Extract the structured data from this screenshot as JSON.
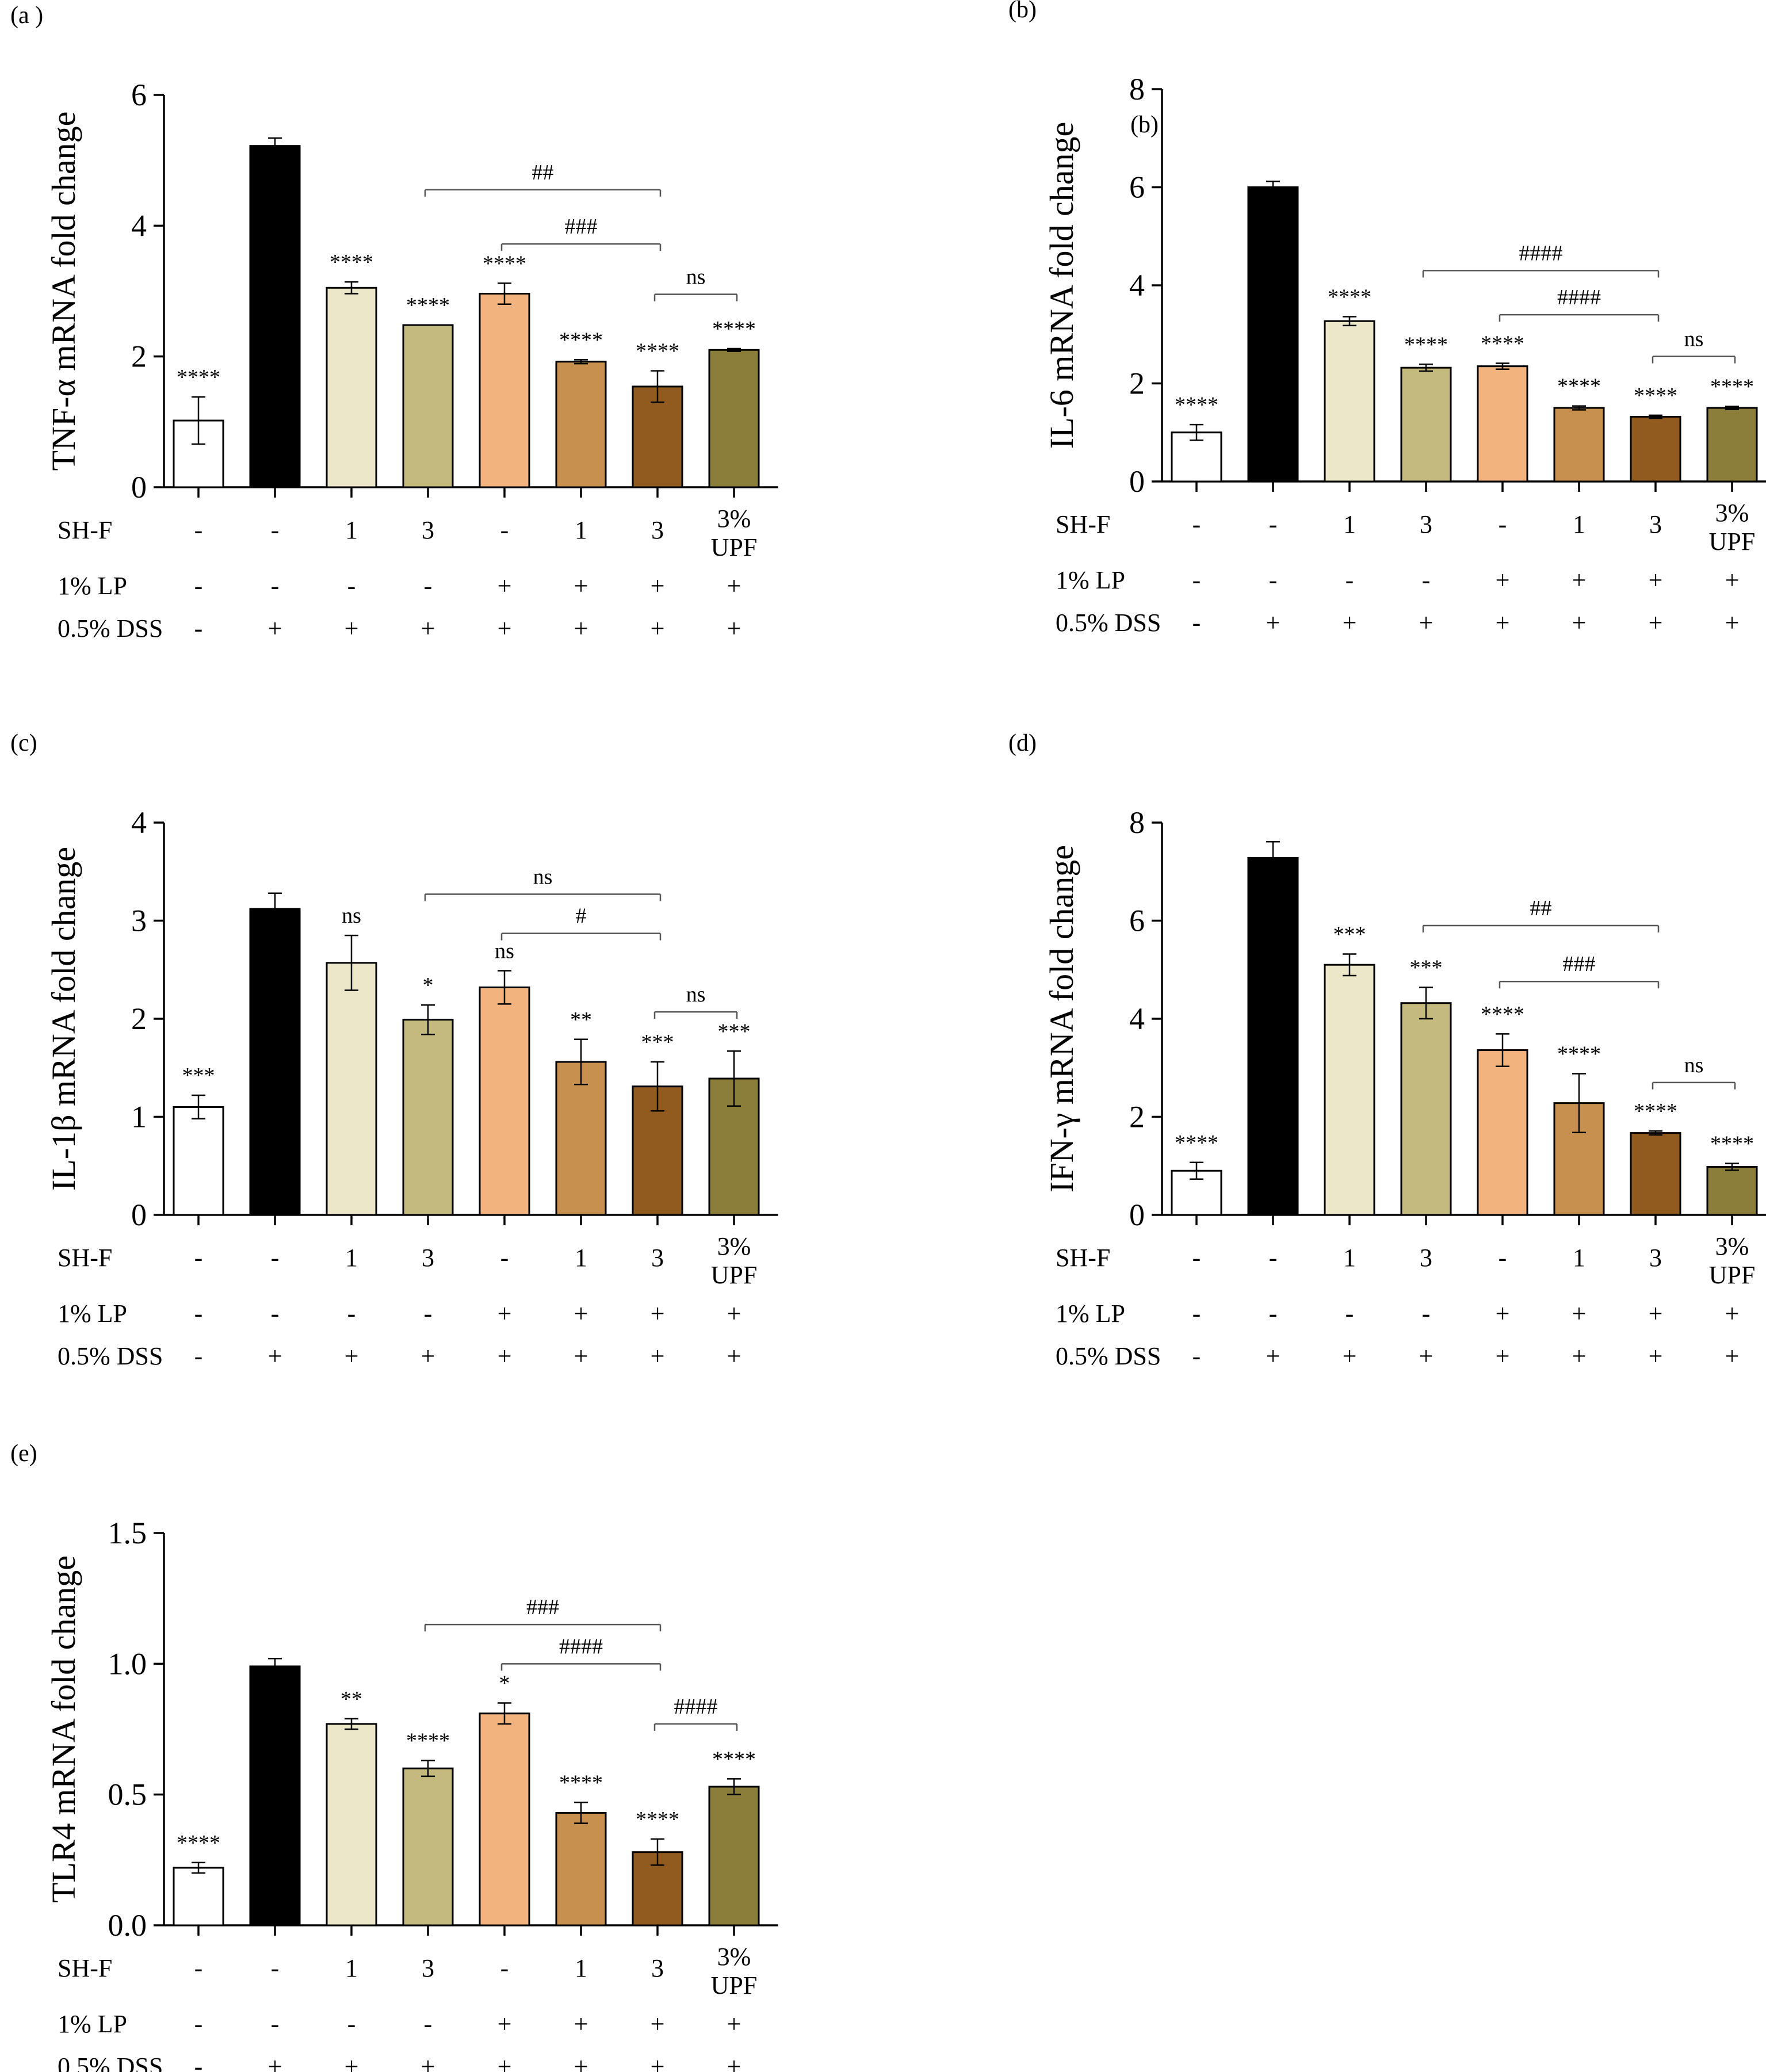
{
  "figure": {
    "conditions": {
      "rows": [
        {
          "label": "SH-F",
          "values": [
            "-",
            "-",
            "1",
            "3",
            "-",
            "1",
            "3",
            "3%|UPF"
          ]
        },
        {
          "label": "1% LP",
          "values": [
            "-",
            "-",
            "-",
            "-",
            "+",
            "+",
            "+",
            "+"
          ]
        },
        {
          "label": "0.5% DSS",
          "values": [
            "-",
            "+",
            "+",
            "+",
            "+",
            "+",
            "+",
            "+"
          ]
        }
      ]
    },
    "colors": [
      "#ffffff",
      "#000000",
      "#ede7c9",
      "#c4ba7e",
      "#f2b37e",
      "#c8904e",
      "#915b1f",
      "#8b7d3a"
    ]
  },
  "chart_data": [
    {
      "type": "bar",
      "panel": "(a )",
      "extra_label": "",
      "ylabel": "TNF-α mRNA fold change",
      "ylim": [
        0,
        6
      ],
      "yticks": [
        "0",
        "2",
        "4",
        "6"
      ],
      "values": [
        1.02,
        5.22,
        3.05,
        2.48,
        2.96,
        1.92,
        1.54,
        2.1
      ],
      "errors": [
        0.36,
        0.12,
        0.09,
        0.0,
        0.16,
        0.03,
        0.24,
        0.02
      ],
      "stars": [
        "****",
        "",
        "****",
        "****",
        "****",
        "****",
        "****",
        "****"
      ],
      "comparisons": [
        {
          "from": 3,
          "to": 6,
          "y": 4.55,
          "label": "##"
        },
        {
          "from": 4,
          "to": 6,
          "y": 3.72,
          "label": "###"
        },
        {
          "from": 6,
          "to": 7,
          "y": 2.95,
          "label": "ns"
        }
      ]
    },
    {
      "type": "bar",
      "panel": "(b)",
      "extra_label": "(b)",
      "ylabel": "IL-6 mRNA fold change",
      "ylim": [
        0,
        8
      ],
      "yticks": [
        "0",
        "2",
        "4",
        "6",
        "8"
      ],
      "values": [
        1.0,
        6.0,
        3.27,
        2.32,
        2.35,
        1.5,
        1.32,
        1.5
      ],
      "errors": [
        0.16,
        0.12,
        0.09,
        0.07,
        0.06,
        0.04,
        0.03,
        0.03
      ],
      "stars": [
        "****",
        "",
        "****",
        "****",
        "****",
        "****",
        "****",
        "****"
      ],
      "comparisons": [
        {
          "from": 3,
          "to": 6,
          "y": 4.3,
          "label": "####"
        },
        {
          "from": 4,
          "to": 6,
          "y": 3.4,
          "label": "####"
        },
        {
          "from": 6,
          "to": 7,
          "y": 2.55,
          "label": "ns"
        }
      ]
    },
    {
      "type": "bar",
      "panel": "(c)",
      "extra_label": "",
      "ylabel": "IL-1β mRNA fold change",
      "ylim": [
        0,
        4
      ],
      "yticks": [
        "0",
        "1",
        "2",
        "3",
        "4"
      ],
      "values": [
        1.1,
        3.12,
        2.57,
        1.99,
        2.32,
        1.56,
        1.31,
        1.39
      ],
      "errors": [
        0.12,
        0.16,
        0.28,
        0.15,
        0.17,
        0.23,
        0.25,
        0.28
      ],
      "stars": [
        "***",
        "",
        "ns",
        "*",
        "ns",
        "**",
        "***",
        "***"
      ],
      "comparisons": [
        {
          "from": 3,
          "to": 6,
          "y": 3.27,
          "label": "ns"
        },
        {
          "from": 4,
          "to": 6,
          "y": 2.87,
          "label": "#"
        },
        {
          "from": 6,
          "to": 7,
          "y": 2.07,
          "label": "ns"
        }
      ]
    },
    {
      "type": "bar",
      "panel": "(d)",
      "extra_label": "",
      "ylabel": "IFN-γ mRNA fold change",
      "ylim": [
        0,
        8
      ],
      "yticks": [
        "0",
        "2",
        "4",
        "6",
        "8"
      ],
      "values": [
        0.9,
        7.28,
        5.1,
        4.32,
        3.36,
        2.28,
        1.67,
        0.98
      ],
      "errors": [
        0.17,
        0.33,
        0.22,
        0.32,
        0.33,
        0.6,
        0.04,
        0.07
      ],
      "stars": [
        "****",
        "",
        "***",
        "***",
        "****",
        "****",
        "****",
        "****"
      ],
      "comparisons": [
        {
          "from": 3,
          "to": 6,
          "y": 5.9,
          "label": "##"
        },
        {
          "from": 4,
          "to": 6,
          "y": 4.76,
          "label": "###"
        },
        {
          "from": 6,
          "to": 7,
          "y": 2.7,
          "label": "ns"
        }
      ]
    },
    {
      "type": "bar",
      "panel": "(e)",
      "extra_label": "",
      "ylabel": "TLR4 mRNA fold change",
      "ylim": [
        0,
        1.5
      ],
      "yticks": [
        "0.0",
        "0.5",
        "1.0",
        "1.5"
      ],
      "values": [
        0.22,
        0.99,
        0.77,
        0.6,
        0.81,
        0.43,
        0.28,
        0.53
      ],
      "errors": [
        0.02,
        0.03,
        0.02,
        0.03,
        0.04,
        0.04,
        0.05,
        0.03
      ],
      "stars": [
        "****",
        "",
        "**",
        "****",
        "*",
        "****",
        "****",
        "****"
      ],
      "comparisons": [
        {
          "from": 3,
          "to": 6,
          "y": 1.15,
          "label": "###"
        },
        {
          "from": 4,
          "to": 6,
          "y": 1.0,
          "label": "####"
        },
        {
          "from": 6,
          "to": 7,
          "y": 0.77,
          "label": "####"
        }
      ]
    }
  ]
}
